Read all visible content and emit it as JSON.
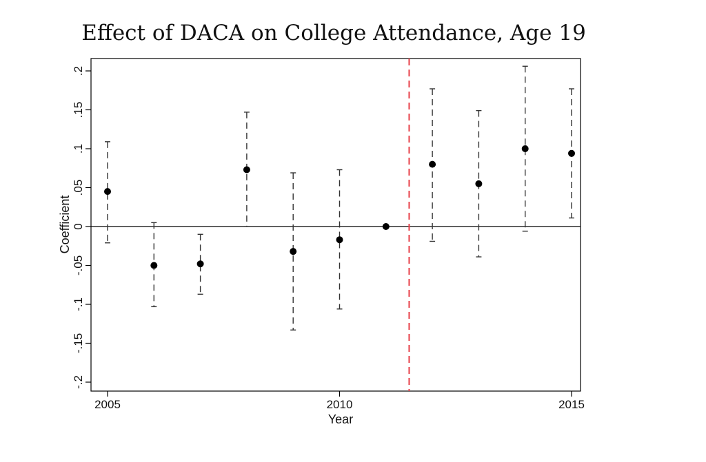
{
  "chart_data": {
    "type": "scatter",
    "title": "Effect of DACA on College Attendance, Age 19",
    "xlabel": "Year",
    "ylabel": "Coefficient",
    "xlim": [
      2005,
      2015
    ],
    "ylim": [
      -0.2,
      0.2
    ],
    "xticks": [
      {
        "value": 2005,
        "label": "2005"
      },
      {
        "value": 2010,
        "label": "2010"
      },
      {
        "value": 2015,
        "label": "2015"
      }
    ],
    "yticks": [
      {
        "value": -0.2,
        "label": "-.2"
      },
      {
        "value": -0.15,
        "label": "-.15"
      },
      {
        "value": -0.1,
        "label": "-.1"
      },
      {
        "value": -0.05,
        "label": "-.05"
      },
      {
        "value": 0,
        "label": "0"
      },
      {
        "value": 0.05,
        "label": ".05"
      },
      {
        "value": 0.1,
        "label": ".1"
      },
      {
        "value": 0.15,
        "label": ".15"
      },
      {
        "value": 0.2,
        "label": ".2"
      }
    ],
    "grid": false,
    "reference_line_y": 0,
    "vertical_marker_x": 2011.5,
    "points": [
      {
        "x": 2005,
        "y": 0.045,
        "low": -0.021,
        "high": 0.109
      },
      {
        "x": 2006,
        "y": -0.05,
        "low": -0.103,
        "high": 0.005
      },
      {
        "x": 2007,
        "y": -0.048,
        "low": -0.087,
        "high": -0.01
      },
      {
        "x": 2008,
        "y": 0.073,
        "low": 0.0,
        "high": 0.147
      },
      {
        "x": 2009,
        "y": -0.032,
        "low": -0.133,
        "high": 0.069
      },
      {
        "x": 2010,
        "y": -0.017,
        "low": -0.106,
        "high": 0.073
      },
      {
        "x": 2011,
        "y": 0.0,
        "low": 0.0,
        "high": 0.0
      },
      {
        "x": 2012,
        "y": 0.08,
        "low": -0.019,
        "high": 0.177
      },
      {
        "x": 2013,
        "y": 0.055,
        "low": -0.039,
        "high": 0.149
      },
      {
        "x": 2014,
        "y": 0.1,
        "low": -0.006,
        "high": 0.206
      },
      {
        "x": 2015,
        "y": 0.094,
        "low": 0.011,
        "high": 0.177
      }
    ],
    "colors": {
      "points": "#000000",
      "bars": "#333333",
      "marker_line": "#e8414a",
      "frame": "#000000"
    }
  }
}
